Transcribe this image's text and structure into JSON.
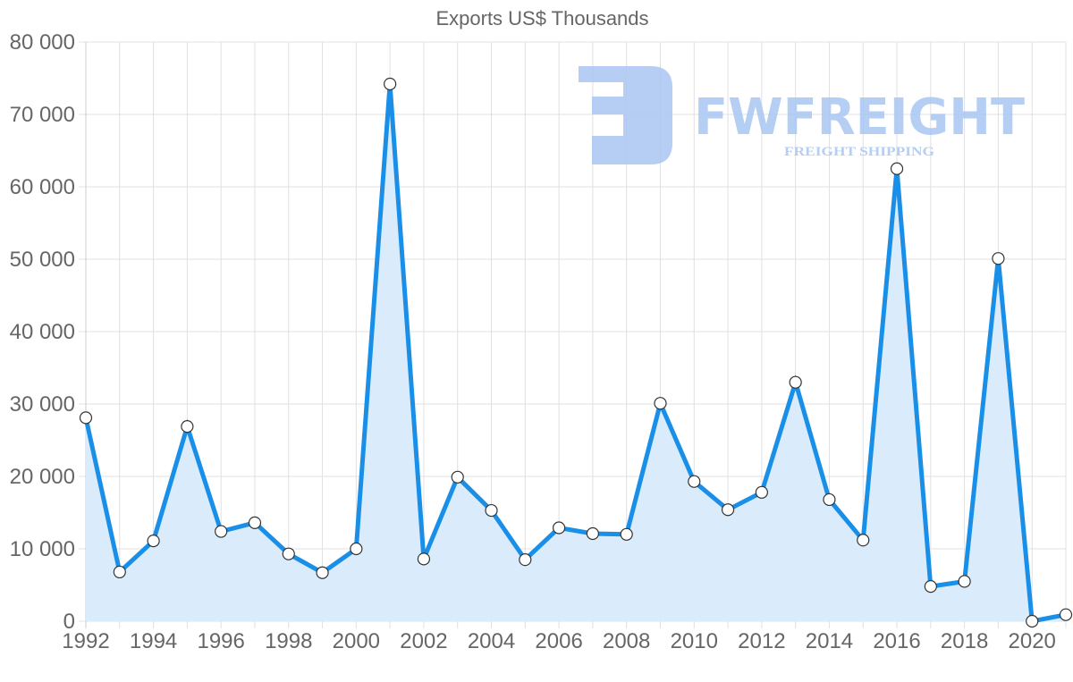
{
  "chart_data": {
    "type": "area",
    "title": "Exports US$ Thousands",
    "xlabel": "",
    "ylabel": "",
    "x": [
      1992,
      1993,
      1994,
      1995,
      1996,
      1997,
      1998,
      1999,
      2000,
      2001,
      2002,
      2003,
      2004,
      2005,
      2006,
      2007,
      2008,
      2009,
      2010,
      2011,
      2012,
      2013,
      2014,
      2015,
      2016,
      2017,
      2018,
      2019,
      2020,
      2021
    ],
    "series": [
      {
        "name": "Exports US$ Thousands",
        "values": [
          28100,
          6800,
          11100,
          26900,
          12400,
          13600,
          9300,
          6700,
          10000,
          74200,
          8600,
          19900,
          15300,
          8500,
          12900,
          12100,
          12000,
          30100,
          19300,
          15400,
          17800,
          33000,
          16800,
          11200,
          62500,
          4800,
          5500,
          50100,
          0,
          900
        ]
      }
    ],
    "ylim": [
      0,
      80000
    ],
    "yticks": [
      "0",
      "10 000",
      "20 000",
      "30 000",
      "40 000",
      "50 000",
      "60 000",
      "70 000",
      "80 000"
    ],
    "xticks": [
      "1992",
      "1994",
      "1996",
      "1998",
      "2000",
      "2002",
      "2004",
      "2006",
      "2008",
      "2010",
      "2012",
      "2014",
      "2016",
      "2018",
      "2020"
    ],
    "grid": true,
    "legend": "none",
    "colors": {
      "line": "#1a8fe8",
      "fill": "#d8ebfb",
      "grid": "#e0e0e0",
      "marker_fill": "#ffffff",
      "marker_stroke": "#333333"
    }
  },
  "watermark": {
    "brand": "FWFREIGHT",
    "tagline": "FREIGHT SHIPPING",
    "color": "#a9c6f2"
  }
}
